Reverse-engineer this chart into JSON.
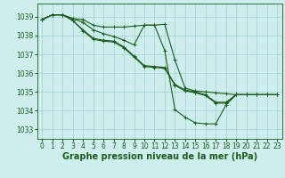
{
  "background_color": "#ceeeed",
  "grid_color": "#aad4d4",
  "line_color": "#1a5c1a",
  "xlabel": "Graphe pression niveau de la mer (hPa)",
  "xlabel_fontsize": 7,
  "xlim": [
    -0.5,
    23.5
  ],
  "ylim": [
    1032.5,
    1039.7
  ],
  "yticks": [
    1033,
    1034,
    1035,
    1036,
    1037,
    1038,
    1039
  ],
  "xticks": [
    0,
    1,
    2,
    3,
    4,
    5,
    6,
    7,
    8,
    9,
    10,
    11,
    12,
    13,
    14,
    15,
    16,
    17,
    18,
    19,
    20,
    21,
    22,
    23
  ],
  "s1": [
    1038.85,
    1039.1,
    1039.1,
    1038.9,
    1038.85,
    1038.55,
    1038.45,
    1038.45,
    1038.45,
    1038.5,
    1038.55,
    1038.55,
    1038.6,
    1036.7,
    1035.2,
    1035.05,
    1035.0,
    1034.95,
    1034.9,
    1034.85,
    1034.85,
    1034.85,
    1034.85,
    1034.85
  ],
  "s2": [
    1038.85,
    1039.1,
    1039.1,
    1038.9,
    1038.7,
    1038.3,
    1038.1,
    1037.95,
    1037.75,
    1037.5,
    1038.55,
    1038.55,
    1037.2,
    1034.05,
    1033.65,
    1033.35,
    1033.3,
    1033.3,
    1034.3,
    1034.85,
    1034.85,
    1034.85,
    1034.85,
    1034.85
  ],
  "s3": [
    1038.85,
    1039.1,
    1039.1,
    1038.8,
    1038.3,
    1037.85,
    1037.75,
    1037.7,
    1037.4,
    1036.9,
    1036.4,
    1036.35,
    1036.3,
    1035.4,
    1035.1,
    1035.0,
    1034.85,
    1034.45,
    1034.45,
    1034.85,
    1034.85,
    1034.85,
    1034.85,
    1034.85
  ],
  "s4": [
    1038.85,
    1039.1,
    1039.1,
    1038.8,
    1038.25,
    1037.8,
    1037.7,
    1037.65,
    1037.35,
    1036.85,
    1036.35,
    1036.3,
    1036.25,
    1035.35,
    1035.05,
    1034.95,
    1034.8,
    1034.4,
    1034.4,
    1034.85,
    1034.85,
    1034.85,
    1034.85,
    1034.85
  ]
}
